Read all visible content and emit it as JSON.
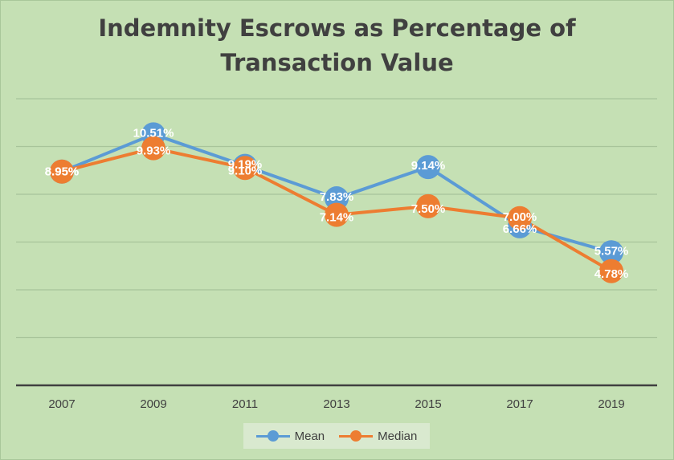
{
  "chart_data": {
    "type": "line",
    "title_lines": [
      "Indemnity Escrows as Percentage of",
      "Transaction Value"
    ],
    "categories": [
      "2007",
      "2009",
      "2011",
      "2013",
      "2015",
      "2017",
      "2019"
    ],
    "series": [
      {
        "name": "Mean",
        "color": "#5b9bd5",
        "values": [
          8.95,
          10.51,
          9.19,
          7.83,
          9.14,
          6.66,
          5.57
        ],
        "labels": [
          "8.95%",
          "10.51%",
          "9.19%",
          "7.83%",
          "9.14%",
          "6.66%",
          "5.57%"
        ]
      },
      {
        "name": "Median",
        "color": "#ed7d31",
        "values": [
          8.95,
          9.93,
          9.1,
          7.14,
          7.5,
          7.0,
          4.78
        ],
        "labels": [
          "8.95%",
          "9.93%",
          "9.10%",
          "7.14%",
          "7.50%",
          "7.00%",
          "4.78%"
        ]
      }
    ],
    "ylim": [
      0,
      12
    ],
    "y_gridline_step": 2,
    "grid": true,
    "y_tick_labels_shown": false,
    "legend_position": "bottom"
  }
}
